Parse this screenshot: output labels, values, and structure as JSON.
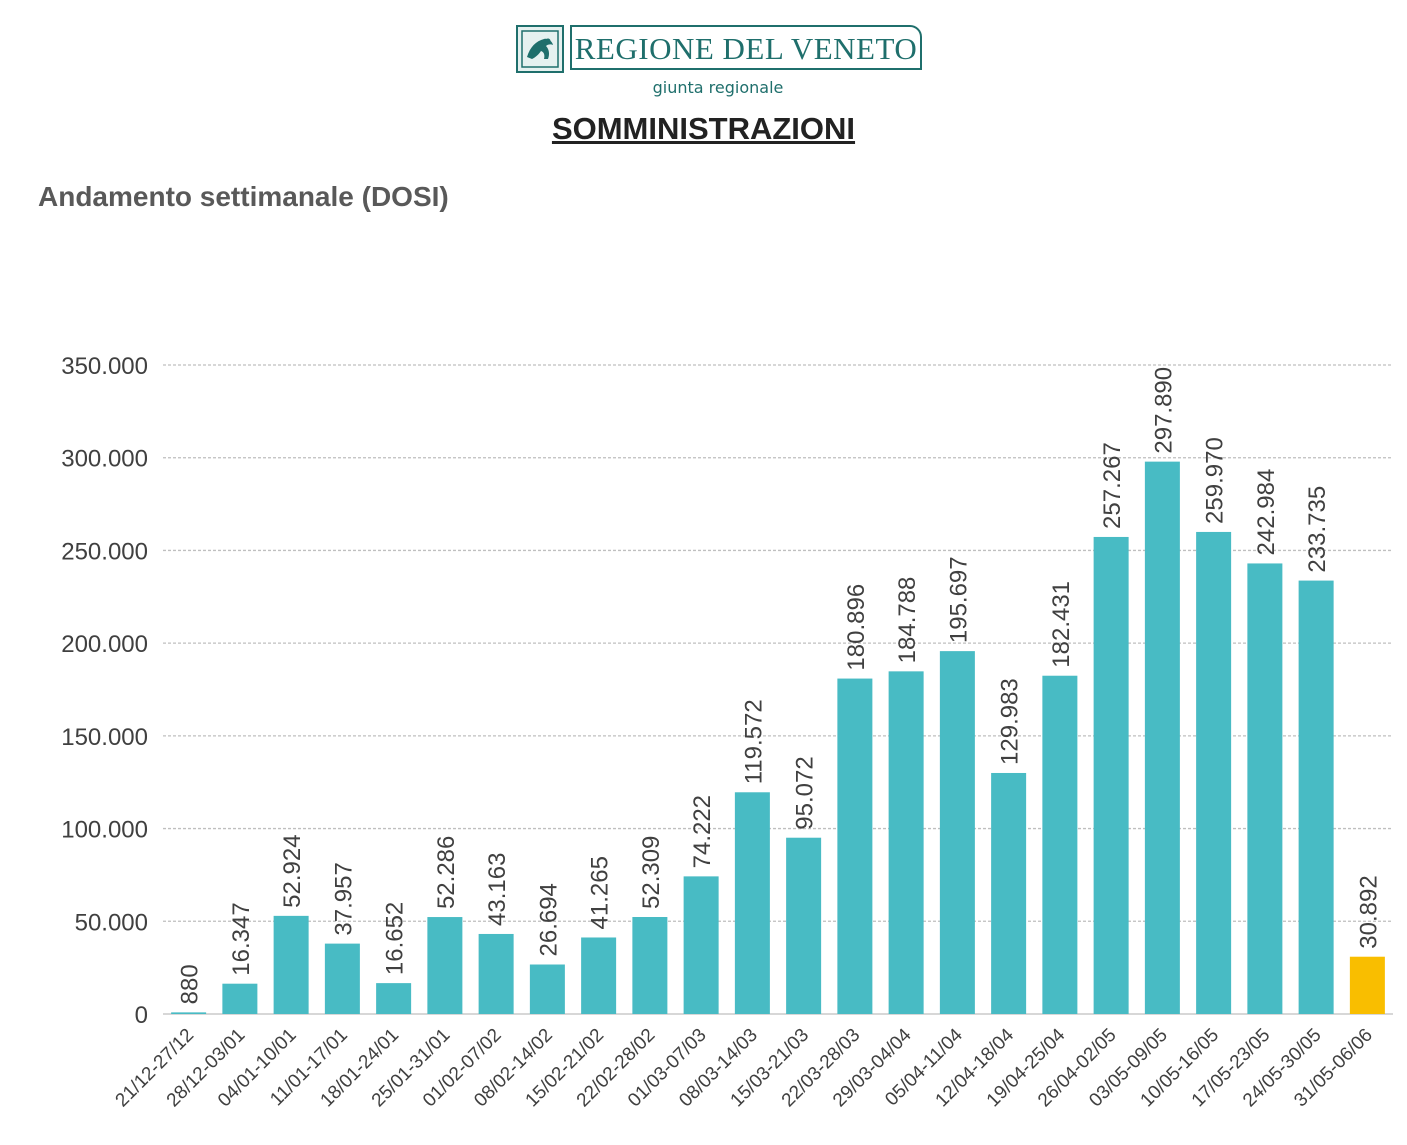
{
  "header": {
    "logo_name": "REGIONE DEL VENETO",
    "logo_subtitle": "giunta regionale",
    "page_title": "SOMMINISTRAZIONI",
    "subtitle": "Andamento settimanale (DOSI)"
  },
  "colors": {
    "bar": "#48BBC4",
    "highlight": "#F9BE00",
    "brand": "#1F6F6C",
    "grid": "#BFBFBF",
    "text": "#404040"
  },
  "chart_data": {
    "type": "bar",
    "title": "Andamento settimanale (DOSI)",
    "categories": [
      "21/12-27/12",
      "28/12-03/01",
      "04/01-10/01",
      "11/01-17/01",
      "18/01-24/01",
      "25/01-31/01",
      "01/02-07/02",
      "08/02-14/02",
      "15/02-21/02",
      "22/02-28/02",
      "01/03-07/03",
      "08/03-14/03",
      "15/03-21/03",
      "22/03-28/03",
      "29/03-04/04",
      "05/04-11/04",
      "12/04-18/04",
      "19/04-25/04",
      "26/04-02/05",
      "03/05-09/05",
      "10/05-16/05",
      "17/05-23/05",
      "24/05-30/05",
      "31/05-06/06"
    ],
    "values": [
      880,
      16347,
      52924,
      37957,
      16652,
      52286,
      43163,
      26694,
      41265,
      52309,
      74222,
      119572,
      95072,
      180896,
      184788,
      195697,
      129983,
      182431,
      257267,
      297890,
      259970,
      242984,
      233735,
      30892
    ],
    "labels": [
      "880",
      "16.347",
      "52.924",
      "37.957",
      "16.652",
      "52.286",
      "43.163",
      "26.694",
      "41.265",
      "52.309",
      "74.222",
      "119.572",
      "95.072",
      "180.896",
      "184.788",
      "195.697",
      "129.983",
      "182.431",
      "257.267",
      "297.890",
      "259.970",
      "242.984",
      "233.735",
      "30.892"
    ],
    "highlight_index": 23,
    "ylim": [
      0,
      350000
    ],
    "yticks": [
      0,
      50000,
      100000,
      150000,
      200000,
      250000,
      300000,
      350000
    ],
    "ytick_labels": [
      "0",
      "50.000",
      "100.000",
      "150.000",
      "200.000",
      "250.000",
      "300.000",
      "350.000"
    ],
    "grid": true,
    "legend": "none",
    "xlabel": "",
    "ylabel": ""
  }
}
